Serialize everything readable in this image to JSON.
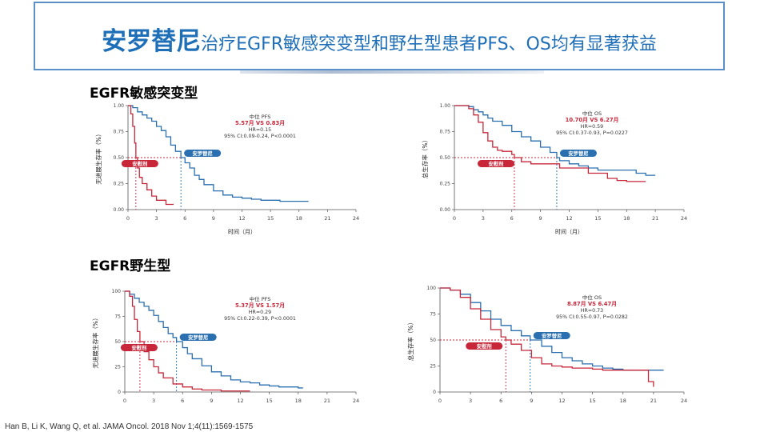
{
  "slide": {
    "title_main": "安罗替尼",
    "title_rest": "治疗EGFR敏感突变型和野生型患者PFS、OS均有显著获益",
    "citation": "Han B, Li K, Wang Q, et al. JAMA Oncol. 2018 Nov 1;4(11):1569-1575"
  },
  "sections": [
    {
      "label": "EGFR敏感突变型"
    },
    {
      "label": "EGFR野生型"
    }
  ],
  "chart_data": [
    {
      "type": "line",
      "title": "中位 PFS",
      "highlight": "5.57月 VS 0.83月",
      "stats": [
        "HR=0.15",
        "95% CI:0.09-0.24, P<0.0001"
      ],
      "xlabel": "时间（月）",
      "ylabel": "无进展生存率（%）",
      "xlim": [
        0,
        24
      ],
      "ylim": [
        0,
        1
      ],
      "x_ticks": [
        "0",
        "3",
        "6",
        "9",
        "12",
        "15",
        "18",
        "21",
        "24"
      ],
      "y_ticks": [
        "0.00",
        "0.25",
        "0.50",
        "0.75",
        "1.00"
      ],
      "median_line": 0.5,
      "series": [
        {
          "name": "安罗替尼",
          "color": "#2a6fb0",
          "median": 5.57,
          "x": [
            0,
            0.5,
            1,
            1.5,
            2,
            2.5,
            3,
            3.5,
            4,
            4.5,
            5,
            5.57,
            6,
            6.5,
            7,
            7.5,
            8,
            9,
            10,
            11,
            12,
            13,
            14,
            15,
            16,
            17,
            18,
            19
          ],
          "y": [
            1,
            0.98,
            0.94,
            0.91,
            0.88,
            0.85,
            0.8,
            0.76,
            0.7,
            0.62,
            0.56,
            0.5,
            0.45,
            0.4,
            0.33,
            0.29,
            0.24,
            0.18,
            0.14,
            0.12,
            0.11,
            0.1,
            0.09,
            0.09,
            0.08,
            0.08,
            0.08,
            0.08
          ]
        },
        {
          "name": "安慰剂",
          "color": "#c8273a",
          "median": 0.83,
          "x": [
            0,
            0.3,
            0.5,
            0.7,
            0.83,
            1,
            1.2,
            1.5,
            2,
            2.5,
            3,
            3.5,
            4,
            4.5,
            4.8
          ],
          "y": [
            1,
            0.92,
            0.8,
            0.64,
            0.5,
            0.4,
            0.31,
            0.25,
            0.19,
            0.13,
            0.09,
            0.09,
            0.05,
            0.05,
            0.05
          ]
        }
      ]
    },
    {
      "type": "line",
      "title": "中位 OS",
      "highlight": "10.70月 VS 6.27月",
      "stats": [
        "HR=0.59",
        "95% CI:0.37-0.93, P=0.0227"
      ],
      "xlabel": "时间（月）",
      "ylabel": "总生存率（%）",
      "xlim": [
        0,
        24
      ],
      "ylim": [
        0,
        1
      ],
      "x_ticks": [
        "0",
        "3",
        "6",
        "9",
        "12",
        "15",
        "18",
        "21",
        "24"
      ],
      "y_ticks": [
        "0.00",
        "0.25",
        "0.50",
        "0.75",
        "1.00"
      ],
      "median_line": 0.5,
      "series": [
        {
          "name": "安罗替尼",
          "color": "#2a6fb0",
          "median": 10.7,
          "x": [
            0,
            1,
            1.5,
            2,
            2.5,
            3,
            3.5,
            4,
            5,
            6,
            7,
            8,
            9,
            10,
            10.7,
            11,
            12,
            13,
            14,
            15,
            16,
            17,
            18,
            19,
            20,
            21
          ],
          "y": [
            1,
            1,
            0.99,
            0.96,
            0.94,
            0.91,
            0.88,
            0.85,
            0.81,
            0.75,
            0.7,
            0.66,
            0.6,
            0.55,
            0.5,
            0.47,
            0.44,
            0.42,
            0.4,
            0.38,
            0.38,
            0.38,
            0.38,
            0.35,
            0.33,
            0.33
          ]
        },
        {
          "name": "安慰剂",
          "color": "#c8273a",
          "median": 6.27,
          "x": [
            0,
            1,
            1.5,
            2,
            2.5,
            3,
            3.5,
            4,
            4.5,
            5,
            6,
            6.27,
            7,
            8,
            9,
            10,
            11,
            12,
            13,
            14,
            15,
            16,
            17,
            18,
            19,
            20
          ],
          "y": [
            1,
            1,
            0.97,
            0.91,
            0.84,
            0.74,
            0.66,
            0.6,
            0.57,
            0.56,
            0.53,
            0.5,
            0.46,
            0.44,
            0.44,
            0.44,
            0.4,
            0.4,
            0.4,
            0.35,
            0.35,
            0.3,
            0.28,
            0.27,
            0.27,
            0.27
          ]
        }
      ]
    },
    {
      "type": "line",
      "title": "中位 PFS",
      "highlight": "5.37月 VS 1.57月",
      "stats": [
        "HR=0.29",
        "95% CI:0.22-0.39, P<0.0001"
      ],
      "xlabel": "",
      "ylabel": "无进展生存率（%）",
      "xlim": [
        0,
        24
      ],
      "ylim": [
        0,
        100
      ],
      "x_ticks": [
        "0",
        "3",
        "6",
        "9",
        "12",
        "15",
        "18",
        "21",
        "24"
      ],
      "y_ticks": [
        "0",
        "25",
        "50",
        "75",
        "100"
      ],
      "median_line": 50,
      "series": [
        {
          "name": "安罗替尼",
          "color": "#2a6fb0",
          "median": 5.37,
          "x": [
            0,
            0.5,
            1,
            1.5,
            2,
            2.5,
            3,
            3.5,
            4,
            4.5,
            5,
            5.37,
            6,
            6.5,
            7,
            8,
            9,
            10,
            11,
            12,
            13,
            14,
            15,
            16,
            17,
            18,
            18.5
          ],
          "y": [
            100,
            97,
            93,
            89,
            85,
            81,
            76,
            70,
            64,
            58,
            54,
            50,
            44,
            38,
            33,
            26,
            20,
            16,
            12,
            10,
            9,
            7,
            6,
            5,
            5,
            4,
            4
          ]
        },
        {
          "name": "安慰剂",
          "color": "#c8273a",
          "median": 1.57,
          "x": [
            0,
            0.5,
            0.8,
            1,
            1.3,
            1.57,
            2,
            2.5,
            3,
            3.5,
            4,
            5,
            6,
            7,
            8,
            9,
            10,
            11,
            12,
            13
          ],
          "y": [
            100,
            95,
            85,
            72,
            60,
            50,
            40,
            32,
            25,
            19,
            14,
            8,
            5,
            3,
            2,
            2,
            1,
            1,
            1,
            1
          ]
        }
      ]
    },
    {
      "type": "line",
      "title": "中位 OS",
      "highlight": "8.87月 VS 6.47月",
      "stats": [
        "HR=0.73",
        "95% CI:0.55-0.97, P=0.0282"
      ],
      "xlabel": "",
      "ylabel": "总生存率（%）",
      "xlim": [
        0,
        24
      ],
      "ylim": [
        0,
        100
      ],
      "x_ticks": [
        "0",
        "3",
        "6",
        "9",
        "12",
        "15",
        "18",
        "21",
        "24"
      ],
      "y_ticks": [
        "0",
        "25",
        "50",
        "75",
        "100"
      ],
      "median_line": 50,
      "series": [
        {
          "name": "安罗替尼",
          "color": "#2a6fb0",
          "median": 8.87,
          "x": [
            0,
            1,
            2,
            3,
            4,
            5,
            6,
            7,
            8,
            8.87,
            10,
            11,
            12,
            13,
            14,
            15,
            16,
            17,
            18,
            19,
            20,
            21,
            22
          ],
          "y": [
            100,
            98,
            94,
            86,
            78,
            70,
            64,
            59,
            54,
            50,
            44,
            38,
            33,
            30,
            27,
            25,
            23,
            22,
            21,
            21,
            21,
            21,
            21
          ]
        },
        {
          "name": "安慰剂",
          "color": "#c8273a",
          "median": 6.47,
          "x": [
            0,
            1,
            2,
            3,
            4,
            5,
            6,
            6.47,
            7,
            8,
            9,
            10,
            11,
            12,
            13,
            14,
            15,
            16,
            17,
            18,
            19,
            20,
            20.5,
            21
          ],
          "y": [
            100,
            98,
            91,
            80,
            70,
            60,
            53,
            50,
            46,
            40,
            33,
            27,
            25,
            24,
            23,
            23,
            22,
            21,
            21,
            21,
            21,
            21,
            10,
            5
          ]
        }
      ]
    }
  ]
}
